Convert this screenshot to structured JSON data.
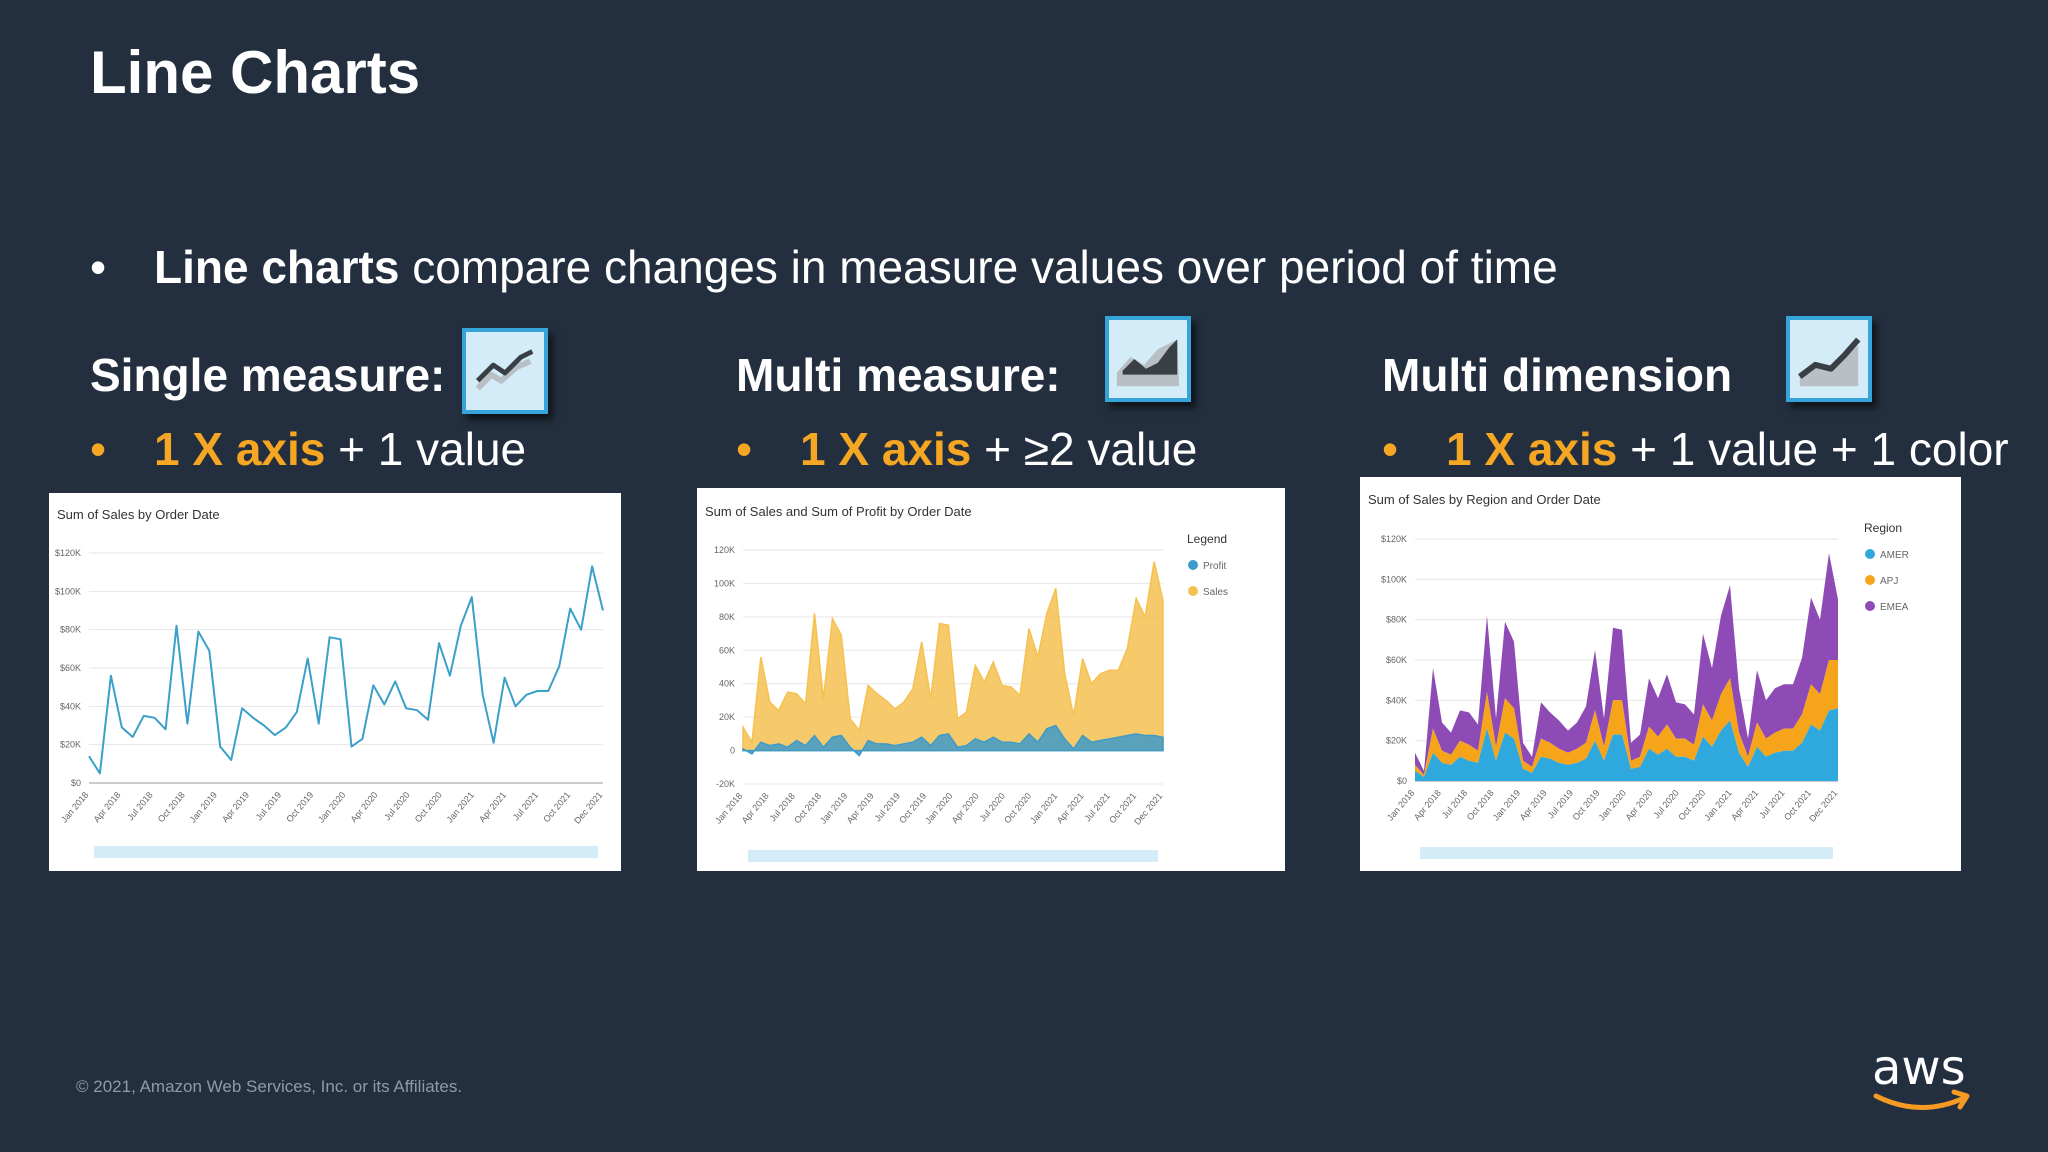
{
  "slide": {
    "title": "Line Charts",
    "intro_bold": "Line charts",
    "intro_rest": " compare changes in measure values over period of time",
    "bullet": "•",
    "footer": "© 2021, Amazon Web Services, Inc. or its Affiliates.",
    "logo_text": "aws",
    "colors": {
      "background": "#232f3e",
      "accent": "#f5a623",
      "icon_border": "#36a4d9"
    }
  },
  "sections": [
    {
      "title": "Single measure:",
      "icon": "line-chart-icon",
      "bullet_accent": "1 X axis",
      "bullet_rest": " + 1 value"
    },
    {
      "title": "Multi measure:",
      "icon": "area-chart-icon",
      "bullet_accent": "1 X axis",
      "bullet_rest": " + ≥2 value"
    },
    {
      "title": "Multi dimension",
      "icon": "stacked-area-chart-icon",
      "bullet_accent": "1 X axis",
      "bullet_rest": " + 1 value + 1 color"
    }
  ],
  "chart_data": [
    {
      "type": "line",
      "title": "Sum of Sales by Order Date",
      "x_tick_labels": [
        "Jan 2018",
        "Apr 2018",
        "Jul 2018",
        "Oct 2018",
        "Jan 2019",
        "Apr 2019",
        "Jul 2019",
        "Oct 2019",
        "Jan 2020",
        "Apr 2020",
        "Jul 2020",
        "Oct 2020",
        "Jan 2021",
        "Apr 2021",
        "Jul 2021",
        "Oct 2021",
        "Dec 2021"
      ],
      "y_tick_labels": [
        "$120K",
        "$100K",
        "$80K",
        "$60K",
        "$40K",
        "$20K",
        "$0"
      ],
      "ylim": [
        0,
        120000
      ],
      "grid": true,
      "series": [
        {
          "color": "#3ba0c9",
          "values": [
            14000,
            5000,
            56000,
            29000,
            24000,
            35000,
            34000,
            28000,
            82000,
            31000,
            79000,
            69000,
            19000,
            12000,
            39000,
            34000,
            30000,
            25000,
            29000,
            37000,
            65000,
            31000,
            76000,
            75000,
            19000,
            23000,
            51000,
            41000,
            53000,
            39000,
            38000,
            33000,
            73000,
            56000,
            82000,
            97000,
            46000,
            21000,
            55000,
            40000,
            46000,
            48000,
            48000,
            61000,
            91000,
            80000,
            113000,
            90000
          ]
        }
      ]
    },
    {
      "type": "area",
      "title": "Sum of Sales and Sum of Profit by Order Date",
      "legend_title": "Legend",
      "legend_position": "right",
      "x_tick_labels": [
        "Jan 2018",
        "Apr 2018",
        "Jul 2018",
        "Oct 2018",
        "Jan 2019",
        "Apr 2019",
        "Jul 2019",
        "Oct 2019",
        "Jan 2020",
        "Apr 2020",
        "Jul 2020",
        "Oct 2020",
        "Jan 2021",
        "Apr 2021",
        "Jul 2021",
        "Oct 2021",
        "Dec 2021"
      ],
      "y_tick_labels": [
        "120K",
        "100K",
        "80K",
        "60K",
        "40K",
        "20K",
        "0",
        "-20K"
      ],
      "ylim": [
        -20000,
        120000
      ],
      "grid": true,
      "series": [
        {
          "name": "Profit",
          "color": "#3e9bc9",
          "values": [
            1000,
            -2000,
            5000,
            3000,
            4000,
            2000,
            6000,
            3000,
            9000,
            2000,
            8000,
            9000,
            2000,
            -3000,
            6000,
            4000,
            4000,
            3000,
            4000,
            5000,
            8000,
            3000,
            9000,
            10000,
            2000,
            3000,
            7000,
            5000,
            8000,
            5000,
            5000,
            4000,
            10000,
            5000,
            13000,
            15000,
            7000,
            1000,
            9000,
            5000,
            6000,
            7000,
            8000,
            9000,
            10000,
            9000,
            9000,
            8000
          ]
        },
        {
          "name": "Sales",
          "color": "#f5c150",
          "values": [
            14000,
            5000,
            56000,
            29000,
            24000,
            35000,
            34000,
            28000,
            82000,
            31000,
            79000,
            69000,
            19000,
            12000,
            39000,
            34000,
            30000,
            25000,
            29000,
            37000,
            65000,
            31000,
            76000,
            75000,
            19000,
            23000,
            51000,
            41000,
            53000,
            39000,
            38000,
            33000,
            73000,
            56000,
            82000,
            97000,
            46000,
            21000,
            55000,
            40000,
            46000,
            48000,
            48000,
            61000,
            91000,
            80000,
            113000,
            90000
          ]
        }
      ]
    },
    {
      "type": "area",
      "stacked": true,
      "title": "Sum of Sales by Region and Order Date",
      "legend_title": "Region",
      "legend_position": "right",
      "x_tick_labels": [
        "Jan 2018",
        "Apr 2018",
        "Jul 2018",
        "Oct 2018",
        "Jan 2019",
        "Apr 2019",
        "Jul 2019",
        "Oct 2019",
        "Jan 2020",
        "Apr 2020",
        "Jul 2020",
        "Oct 2020",
        "Jan 2021",
        "Apr 2021",
        "Jul 2021",
        "Oct 2021",
        "Dec 2021"
      ],
      "y_tick_labels": [
        "$120K",
        "$100K",
        "$80K",
        "$60K",
        "$40K",
        "$20K",
        "$0"
      ],
      "ylim": [
        0,
        120000
      ],
      "grid": true,
      "series": [
        {
          "name": "AMER",
          "color": "#2fa8dd",
          "values": [
            5000,
            2000,
            14000,
            9000,
            8000,
            12000,
            10000,
            9000,
            26000,
            10000,
            24000,
            21000,
            6000,
            4000,
            12000,
            11000,
            9000,
            8000,
            9000,
            11000,
            20000,
            10000,
            23000,
            23000,
            6000,
            7000,
            16000,
            13000,
            16000,
            12000,
            12000,
            10000,
            22000,
            17000,
            25000,
            30000,
            14000,
            7000,
            17000,
            12000,
            14000,
            15000,
            15000,
            19000,
            28000,
            25000,
            35000,
            36000
          ]
        },
        {
          "name": "APJ",
          "color": "#f6a51a",
          "values": [
            3000,
            1000,
            12000,
            6000,
            5000,
            8000,
            8000,
            6000,
            18000,
            7000,
            17000,
            15000,
            4000,
            3000,
            9000,
            8000,
            7000,
            6000,
            7000,
            8000,
            15000,
            7000,
            17000,
            17000,
            4000,
            5000,
            11000,
            9000,
            12000,
            9000,
            9000,
            8000,
            16000,
            13000,
            18000,
            21000,
            10000,
            5000,
            12000,
            9000,
            10000,
            11000,
            11000,
            14000,
            20000,
            18000,
            25000,
            24000
          ]
        },
        {
          "name": "EMEA",
          "color": "#8e4bb5",
          "values": [
            6000,
            2000,
            30000,
            14000,
            11000,
            15000,
            16000,
            13000,
            38000,
            14000,
            38000,
            33000,
            9000,
            5000,
            18000,
            15000,
            14000,
            11000,
            13000,
            18000,
            30000,
            14000,
            36000,
            35000,
            9000,
            11000,
            24000,
            19000,
            25000,
            18000,
            17000,
            15000,
            35000,
            26000,
            39000,
            46000,
            22000,
            9000,
            26000,
            19000,
            22000,
            22000,
            22000,
            28000,
            43000,
            37000,
            53000,
            30000
          ]
        }
      ]
    }
  ]
}
